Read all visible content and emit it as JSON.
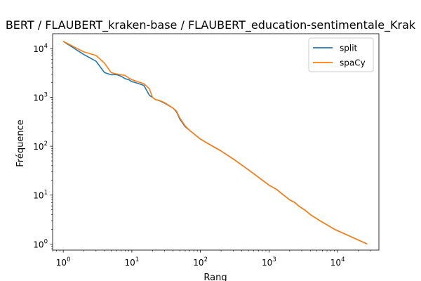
{
  "chart_data": {
    "type": "line",
    "title": "BERT / FLAUBERT_kraken-base / FLAUBERT_education-sentimentale_Krak",
    "xlabel": "Rang",
    "ylabel": "Fréquence",
    "xscale": "log",
    "yscale": "log",
    "xlim": [
      0.7,
      40000
    ],
    "ylim": [
      0.75,
      20000
    ],
    "x_tick_labels": [
      {
        "base": "10",
        "exp": "0",
        "value": 1
      },
      {
        "base": "10",
        "exp": "1",
        "value": 10
      },
      {
        "base": "10",
        "exp": "2",
        "value": 100
      },
      {
        "base": "10",
        "exp": "3",
        "value": 1000
      },
      {
        "base": "10",
        "exp": "4",
        "value": 10000
      }
    ],
    "y_tick_labels": [
      {
        "base": "10",
        "exp": "0",
        "value": 1
      },
      {
        "base": "10",
        "exp": "1",
        "value": 10
      },
      {
        "base": "10",
        "exp": "2",
        "value": 100
      },
      {
        "base": "10",
        "exp": "3",
        "value": 1000
      },
      {
        "base": "10",
        "exp": "4",
        "value": 10000
      }
    ],
    "grid": false,
    "legend_position": "top-right",
    "series": [
      {
        "name": "split",
        "color": "#1f77b4",
        "x": [
          1,
          2,
          3,
          4,
          5,
          6,
          7,
          8,
          9,
          10,
          12,
          15,
          18,
          20,
          22,
          25,
          30,
          40,
          45,
          50,
          60,
          70,
          100,
          120,
          200,
          300,
          500,
          1000,
          1300,
          1500,
          1800,
          2000,
          2400,
          2700,
          3300,
          4000,
          5500,
          9000,
          27000
        ],
        "y": [
          14000,
          7500,
          5500,
          3200,
          2900,
          2900,
          2700,
          2400,
          2300,
          2100,
          1950,
          1750,
          1100,
          1000,
          900,
          860,
          760,
          600,
          500,
          360,
          250,
          210,
          140,
          120,
          80,
          55,
          33,
          16,
          13,
          11,
          9,
          8,
          7,
          6,
          5,
          4,
          3,
          2,
          1
        ]
      },
      {
        "name": "spaCy",
        "color": "#ff7f0e",
        "x": [
          1,
          2,
          3,
          4,
          5,
          6,
          7,
          8,
          9,
          10,
          12,
          15,
          18,
          20,
          22,
          25,
          30,
          40,
          45,
          50,
          60,
          70,
          100,
          120,
          200,
          300,
          500,
          1000,
          1300,
          1500,
          1800,
          2000,
          2400,
          2700,
          3300,
          4000,
          5500,
          9000,
          27000
        ],
        "y": [
          14000,
          8500,
          7200,
          5000,
          3200,
          3000,
          2900,
          2800,
          2500,
          2300,
          2100,
          1900,
          1500,
          1000,
          900,
          870,
          780,
          600,
          520,
          380,
          260,
          210,
          140,
          120,
          80,
          55,
          33,
          16,
          13,
          11,
          9,
          8,
          7,
          6,
          5,
          4,
          3,
          2,
          1
        ]
      }
    ]
  }
}
